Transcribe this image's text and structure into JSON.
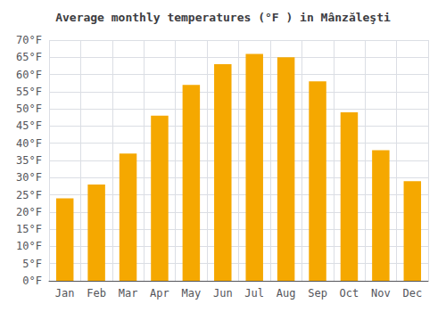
{
  "chart_data": {
    "type": "bar",
    "title": "Average monthly temperatures (°F ) in Mânzăleşti",
    "categories": [
      "Jan",
      "Feb",
      "Mar",
      "Apr",
      "May",
      "Jun",
      "Jul",
      "Aug",
      "Sep",
      "Oct",
      "Nov",
      "Dec"
    ],
    "values": [
      24,
      28,
      37,
      48,
      57,
      63,
      66,
      65,
      58,
      49,
      38,
      29
    ],
    "color": "#F5A800",
    "ylim": [
      0,
      70
    ],
    "yticks": [
      {
        "value": 0,
        "label": "0°F"
      },
      {
        "value": 5,
        "label": "5°F"
      },
      {
        "value": 10,
        "label": "10°F"
      },
      {
        "value": 15,
        "label": "15°F"
      },
      {
        "value": 20,
        "label": "20°F"
      },
      {
        "value": 25,
        "label": "25°F"
      },
      {
        "value": 30,
        "label": "30°F"
      },
      {
        "value": 35,
        "label": "35°F"
      },
      {
        "value": 40,
        "label": "40°F"
      },
      {
        "value": 45,
        "label": "45°F"
      },
      {
        "value": 50,
        "label": "50°F"
      },
      {
        "value": 55,
        "label": "55°F"
      },
      {
        "value": 60,
        "label": "60°F"
      },
      {
        "value": 65,
        "label": "65°F"
      },
      {
        "value": 70,
        "label": "70°F"
      }
    ],
    "grid": true
  }
}
